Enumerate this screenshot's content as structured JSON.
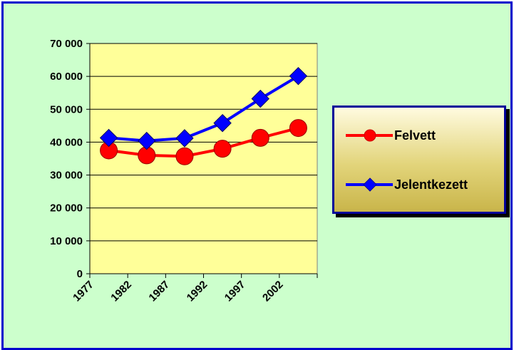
{
  "chart_data": {
    "type": "line",
    "title": "",
    "xlabel": "",
    "ylabel": "",
    "categories": [
      "1977",
      "1982",
      "1987",
      "1992",
      "1997",
      "2002"
    ],
    "ylim": [
      0,
      70000
    ],
    "yticks": [
      0,
      10000,
      20000,
      30000,
      40000,
      50000,
      60000,
      70000
    ],
    "ytick_labels": [
      "0",
      "10 000",
      "20 000",
      "30 000",
      "40 000",
      "50 000",
      "60 000",
      "70 000"
    ],
    "grid": true,
    "legend_position": "right",
    "series": [
      {
        "name": "Felvett",
        "color": "#ff0000",
        "marker": "circle",
        "values": [
          37500,
          36000,
          35700,
          38000,
          41300,
          44300
        ]
      },
      {
        "name": "Jelentkezett",
        "color": "#0000ff",
        "marker": "diamond",
        "values": [
          41300,
          40400,
          41200,
          45800,
          53200,
          60100
        ]
      }
    ]
  },
  "colors": {
    "page_background": "#ccffcc",
    "frame_border": "#0000cc",
    "plot_background": "#ffff99"
  }
}
